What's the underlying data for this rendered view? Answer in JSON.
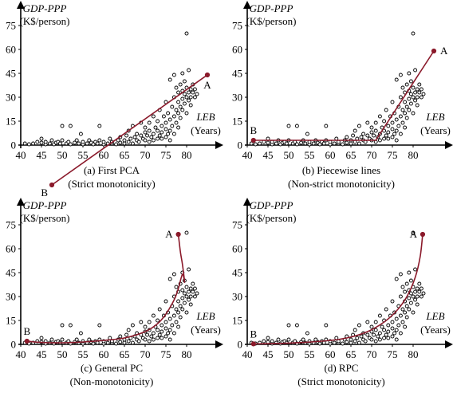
{
  "figure": {
    "colors": {
      "axis": "#000000",
      "curve": "#8b1a2b",
      "point_stroke": "#000000",
      "point_fill": "#ffffff"
    }
  },
  "chart_data": [
    {
      "type": "scatter",
      "caption": [
        "(a) First PCA",
        "(Strict monotonicity)"
      ],
      "ylabel": "GDP-PPP",
      "yunit": "(K$/person)",
      "xlabel": "LEB",
      "xunit": "(Years)",
      "xticks": [
        40,
        45,
        50,
        55,
        60,
        65,
        70,
        75,
        80
      ],
      "yticks": [
        0,
        15,
        30,
        45,
        60,
        75
      ],
      "xlim": [
        40,
        88
      ],
      "ylim": [
        -28,
        80
      ],
      "curve": [
        [
          47.5,
          -25
        ],
        [
          85,
          44
        ]
      ],
      "endpoints": [
        {
          "label": "B",
          "x": 47.5,
          "y": -25,
          "pos": "below-left"
        },
        {
          "label": "A",
          "x": 85,
          "y": 44,
          "pos": "below"
        }
      ],
      "curve_style": "line"
    },
    {
      "type": "scatter",
      "caption": [
        "(b) Piecewise lines",
        "(Non-strict monotonicity)"
      ],
      "ylabel": "GDP-PPP",
      "yunit": "(K$/person)",
      "xlabel": "LEB",
      "xunit": "(Years)",
      "xticks": [
        40,
        45,
        50,
        55,
        60,
        65,
        70,
        75,
        80
      ],
      "yticks": [
        0,
        15,
        30,
        45,
        60,
        75
      ],
      "xlim": [
        40,
        88
      ],
      "ylim": [
        -4,
        80
      ],
      "curve": [
        [
          41.5,
          3
        ],
        [
          71,
          3
        ],
        [
          85,
          59
        ]
      ],
      "endpoints": [
        {
          "label": "B",
          "x": 41.5,
          "y": 3,
          "pos": "above"
        },
        {
          "label": "A",
          "x": 85,
          "y": 59,
          "pos": "right"
        }
      ],
      "curve_style": "line"
    },
    {
      "type": "scatter",
      "caption": [
        "(c) General PC",
        "(Non-monotonicity)"
      ],
      "ylabel": "GDP-PPP",
      "yunit": "(K$/person)",
      "xlabel": "LEB",
      "xunit": "(Years)",
      "xticks": [
        40,
        45,
        50,
        55,
        60,
        65,
        70,
        75,
        80
      ],
      "yticks": [
        0,
        15,
        30,
        45,
        60,
        75
      ],
      "xlim": [
        40,
        88
      ],
      "ylim": [
        -4,
        80
      ],
      "curve": [
        [
          41.5,
          2
        ],
        [
          45,
          1.2
        ],
        [
          50,
          1
        ],
        [
          55,
          1.5
        ],
        [
          60,
          2.5
        ],
        [
          65,
          4
        ],
        [
          70,
          8
        ],
        [
          73,
          13
        ],
        [
          75,
          19
        ],
        [
          77,
          28
        ],
        [
          78,
          35
        ],
        [
          79,
          44
        ],
        [
          79.5,
          39
        ],
        [
          79,
          50
        ],
        [
          78.5,
          58
        ],
        [
          78,
          69
        ]
      ],
      "endpoints": [
        {
          "label": "B",
          "x": 41.5,
          "y": 2,
          "pos": "above"
        },
        {
          "label": "A",
          "x": 78,
          "y": 69,
          "pos": "left"
        }
      ],
      "curve_style": "smooth"
    },
    {
      "type": "scatter",
      "caption": [
        "(d) RPC",
        "(Strict monotonicity)"
      ],
      "ylabel": "GDP-PPP",
      "yunit": "(K$/person)",
      "xlabel": "LEB",
      "xunit": "(Years)",
      "xticks": [
        40,
        45,
        50,
        55,
        60,
        65,
        70,
        75,
        80
      ],
      "yticks": [
        0,
        15,
        30,
        45,
        60,
        75
      ],
      "xlim": [
        40,
        88
      ],
      "ylim": [
        -4,
        80
      ],
      "curve": [
        [
          41.5,
          0.3
        ],
        [
          50,
          0.8
        ],
        [
          58,
          2
        ],
        [
          64,
          4
        ],
        [
          69,
          8
        ],
        [
          73,
          14
        ],
        [
          76,
          21
        ],
        [
          78.5,
          30
        ],
        [
          80.5,
          42
        ],
        [
          81.7,
          55
        ],
        [
          82.3,
          69
        ]
      ],
      "endpoints": [
        {
          "label": "B",
          "x": 41.5,
          "y": 0.3,
          "pos": "above"
        },
        {
          "label": "A",
          "x": 82.3,
          "y": 69,
          "pos": "left"
        }
      ],
      "curve_style": "smooth"
    }
  ],
  "points": [
    [
      41,
      1
    ],
    [
      42,
      0.5
    ],
    [
      43,
      1
    ],
    [
      44,
      2
    ],
    [
      45,
      1.5
    ],
    [
      45,
      4
    ],
    [
      46,
      0.5
    ],
    [
      46,
      2
    ],
    [
      47,
      1
    ],
    [
      47.5,
      3
    ],
    [
      48,
      0.5
    ],
    [
      48.5,
      1.5
    ],
    [
      49,
      2
    ],
    [
      49.5,
      1
    ],
    [
      50,
      12
    ],
    [
      50,
      3
    ],
    [
      51,
      1
    ],
    [
      51.5,
      2
    ],
    [
      52,
      12
    ],
    [
      52,
      0.5
    ],
    [
      53,
      1.5
    ],
    [
      53.5,
      3
    ],
    [
      54,
      1
    ],
    [
      54.5,
      7
    ],
    [
      55,
      0.5
    ],
    [
      55,
      2
    ],
    [
      56,
      1
    ],
    [
      56.5,
      3
    ],
    [
      57,
      1.5
    ],
    [
      57.5,
      0.5
    ],
    [
      58,
      2
    ],
    [
      58.5,
      1
    ],
    [
      59,
      12
    ],
    [
      59,
      3
    ],
    [
      60,
      0.5
    ],
    [
      60,
      2
    ],
    [
      61,
      1
    ],
    [
      61.5,
      4
    ],
    [
      62,
      1
    ],
    [
      62,
      2
    ],
    [
      63,
      0.5
    ],
    [
      63.5,
      3
    ],
    [
      64,
      1.5
    ],
    [
      64,
      5
    ],
    [
      65,
      1
    ],
    [
      65,
      3
    ],
    [
      65.5,
      6
    ],
    [
      66,
      2
    ],
    [
      66,
      9
    ],
    [
      66.5,
      4
    ],
    [
      67,
      1
    ],
    [
      67,
      12
    ],
    [
      67.5,
      5
    ],
    [
      68,
      3
    ],
    [
      68,
      7
    ],
    [
      68.5,
      2
    ],
    [
      69,
      6
    ],
    [
      69,
      14
    ],
    [
      69.5,
      4
    ],
    [
      70,
      8
    ],
    [
      70,
      3
    ],
    [
      70,
      11
    ],
    [
      70.5,
      6
    ],
    [
      71,
      2
    ],
    [
      71,
      9
    ],
    [
      71,
      14
    ],
    [
      71.5,
      5
    ],
    [
      72,
      7
    ],
    [
      72,
      18
    ],
    [
      72,
      3
    ],
    [
      72.5,
      11
    ],
    [
      73,
      4
    ],
    [
      73,
      9
    ],
    [
      73,
      15
    ],
    [
      73.5,
      6
    ],
    [
      73.5,
      22
    ],
    [
      74,
      8
    ],
    [
      74,
      12
    ],
    [
      74,
      4
    ],
    [
      74.5,
      18
    ],
    [
      75,
      5
    ],
    [
      75,
      10
    ],
    [
      75,
      14
    ],
    [
      75,
      27
    ],
    [
      75.5,
      7
    ],
    [
      75.5,
      20
    ],
    [
      76,
      9
    ],
    [
      76,
      16
    ],
    [
      76,
      41
    ],
    [
      76,
      3
    ],
    [
      76.5,
      12
    ],
    [
      76.5,
      24
    ],
    [
      77,
      18
    ],
    [
      77,
      30
    ],
    [
      77,
      7
    ],
    [
      77,
      44
    ],
    [
      77.5,
      14
    ],
    [
      77.5,
      22
    ],
    [
      77.5,
      36
    ],
    [
      78,
      20
    ],
    [
      78,
      27
    ],
    [
      78,
      11
    ],
    [
      78,
      33
    ],
    [
      78.5,
      24
    ],
    [
      78.5,
      38
    ],
    [
      78.5,
      17
    ],
    [
      79,
      29
    ],
    [
      79,
      34
    ],
    [
      79,
      22
    ],
    [
      79,
      45
    ],
    [
      79.5,
      32
    ],
    [
      79.5,
      26
    ],
    [
      79.5,
      40
    ],
    [
      80,
      70
    ],
    [
      80,
      30
    ],
    [
      80,
      36
    ],
    [
      80,
      20
    ],
    [
      80.5,
      33
    ],
    [
      80.5,
      28
    ],
    [
      80.5,
      47
    ],
    [
      81,
      35
    ],
    [
      81,
      30
    ],
    [
      81,
      25
    ],
    [
      81.5,
      33
    ],
    [
      81.5,
      38
    ],
    [
      82,
      30
    ],
    [
      82,
      35
    ],
    [
      82.5,
      32
    ]
  ]
}
